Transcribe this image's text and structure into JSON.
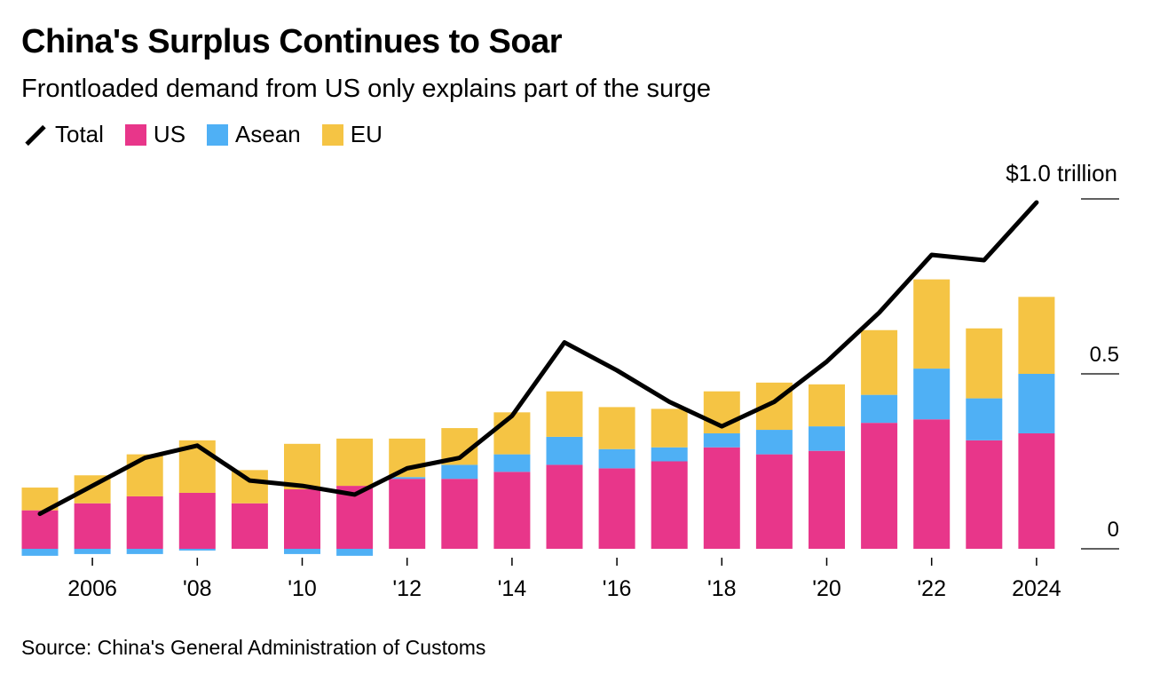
{
  "chart_data": {
    "type": "bar",
    "stacked": true,
    "title": "China's Surplus Continues to Soar",
    "subtitle": "Frontloaded demand from US only explains part of the surge",
    "source": "Source: China's General Administration of Customs",
    "unit_label": "$1.0 trillion",
    "x": [
      2005,
      2006,
      2007,
      2008,
      2009,
      2010,
      2011,
      2012,
      2013,
      2014,
      2015,
      2016,
      2017,
      2018,
      2019,
      2020,
      2021,
      2022,
      2023,
      2024
    ],
    "x_tick_labels": [
      {
        "x": 2006,
        "label": "2006"
      },
      {
        "x": 2008,
        "label": "'08"
      },
      {
        "x": 2010,
        "label": "'10"
      },
      {
        "x": 2012,
        "label": "'12"
      },
      {
        "x": 2014,
        "label": "'14"
      },
      {
        "x": 2016,
        "label": "'16"
      },
      {
        "x": 2018,
        "label": "'18"
      },
      {
        "x": 2020,
        "label": "'20"
      },
      {
        "x": 2022,
        "label": "'22"
      },
      {
        "x": 2024,
        "label": "2024"
      }
    ],
    "y_ticks": [
      {
        "value": 0,
        "label": "0"
      },
      {
        "value": 0.5,
        "label": "0.5"
      },
      {
        "value": 1.0,
        "label": ""
      }
    ],
    "ylim": [
      -0.03,
      1.05
    ],
    "legend_position": "top-left",
    "series": [
      {
        "name": "US",
        "kind": "bar",
        "color": "#e8368a",
        "values": [
          0.11,
          0.13,
          0.15,
          0.16,
          0.13,
          0.17,
          0.18,
          0.2,
          0.2,
          0.22,
          0.24,
          0.23,
          0.25,
          0.29,
          0.27,
          0.28,
          0.36,
          0.37,
          0.31,
          0.33
        ]
      },
      {
        "name": "Asean",
        "kind": "bar",
        "color": "#4fb0f5",
        "values": [
          -0.02,
          -0.015,
          -0.015,
          -0.005,
          0.0,
          -0.015,
          -0.02,
          0.005,
          0.04,
          0.05,
          0.08,
          0.055,
          0.04,
          0.04,
          0.07,
          0.07,
          0.08,
          0.145,
          0.12,
          0.17
        ]
      },
      {
        "name": "EU",
        "kind": "bar",
        "color": "#f5c444",
        "values": [
          0.065,
          0.08,
          0.12,
          0.15,
          0.095,
          0.13,
          0.135,
          0.11,
          0.105,
          0.12,
          0.13,
          0.12,
          0.11,
          0.12,
          0.135,
          0.12,
          0.185,
          0.255,
          0.2,
          0.22
        ]
      },
      {
        "name": "Total",
        "kind": "line",
        "color": "#000000",
        "values": [
          0.1,
          0.18,
          0.26,
          0.295,
          0.195,
          0.18,
          0.155,
          0.23,
          0.26,
          0.38,
          0.59,
          0.51,
          0.42,
          0.35,
          0.42,
          0.535,
          0.675,
          0.84,
          0.825,
          0.99
        ]
      }
    ],
    "legend": [
      {
        "name": "Total",
        "kind": "line",
        "color": "#000000"
      },
      {
        "name": "US",
        "kind": "bar",
        "color": "#e8368a"
      },
      {
        "name": "Asean",
        "kind": "bar",
        "color": "#4fb0f5"
      },
      {
        "name": "EU",
        "kind": "bar",
        "color": "#f5c444"
      }
    ]
  }
}
